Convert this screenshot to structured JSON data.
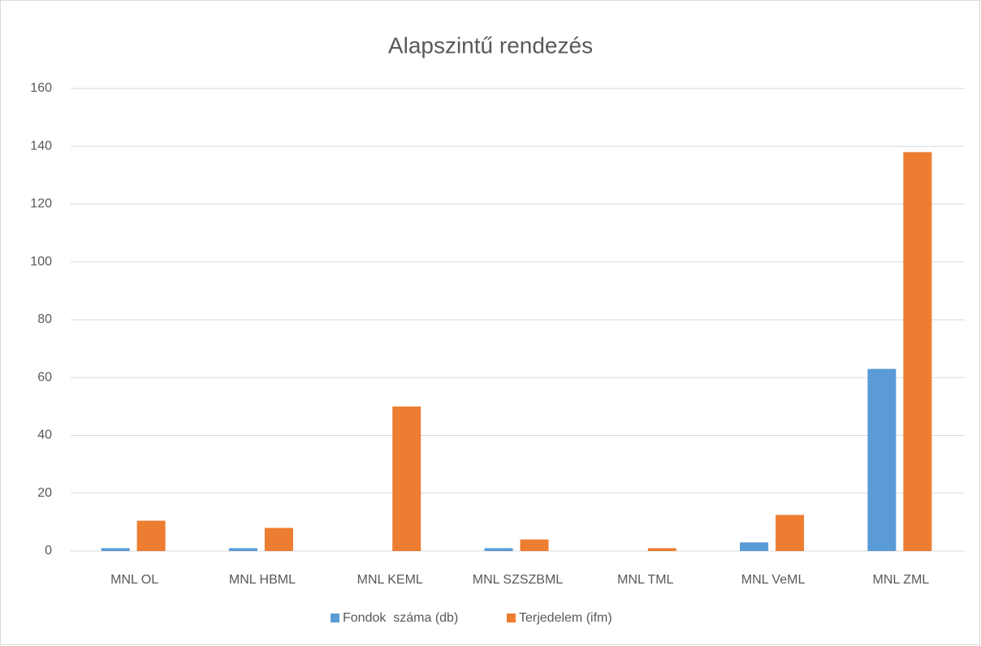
{
  "chart_data": {
    "type": "bar",
    "title": "Alapszintű rendezés",
    "categories": [
      "MNL OL",
      "MNL HBML",
      "MNL KEML",
      "MNL SZSZBML",
      "MNL TML",
      "MNL VeML",
      "MNL ZML"
    ],
    "series": [
      {
        "name": "Fondok  száma (db)",
        "color": "#5b9bd5",
        "values": [
          1,
          1,
          0,
          1,
          0,
          3,
          63
        ]
      },
      {
        "name": "Terjedelem (ifm)",
        "color": "#ed7d31",
        "values": [
          10.5,
          8,
          50,
          4,
          1,
          12.5,
          138
        ]
      }
    ],
    "ylim": [
      0,
      160
    ],
    "yticks": [
      0,
      20,
      40,
      60,
      80,
      100,
      120,
      140,
      160
    ],
    "grid": true,
    "legend": "bottom"
  }
}
